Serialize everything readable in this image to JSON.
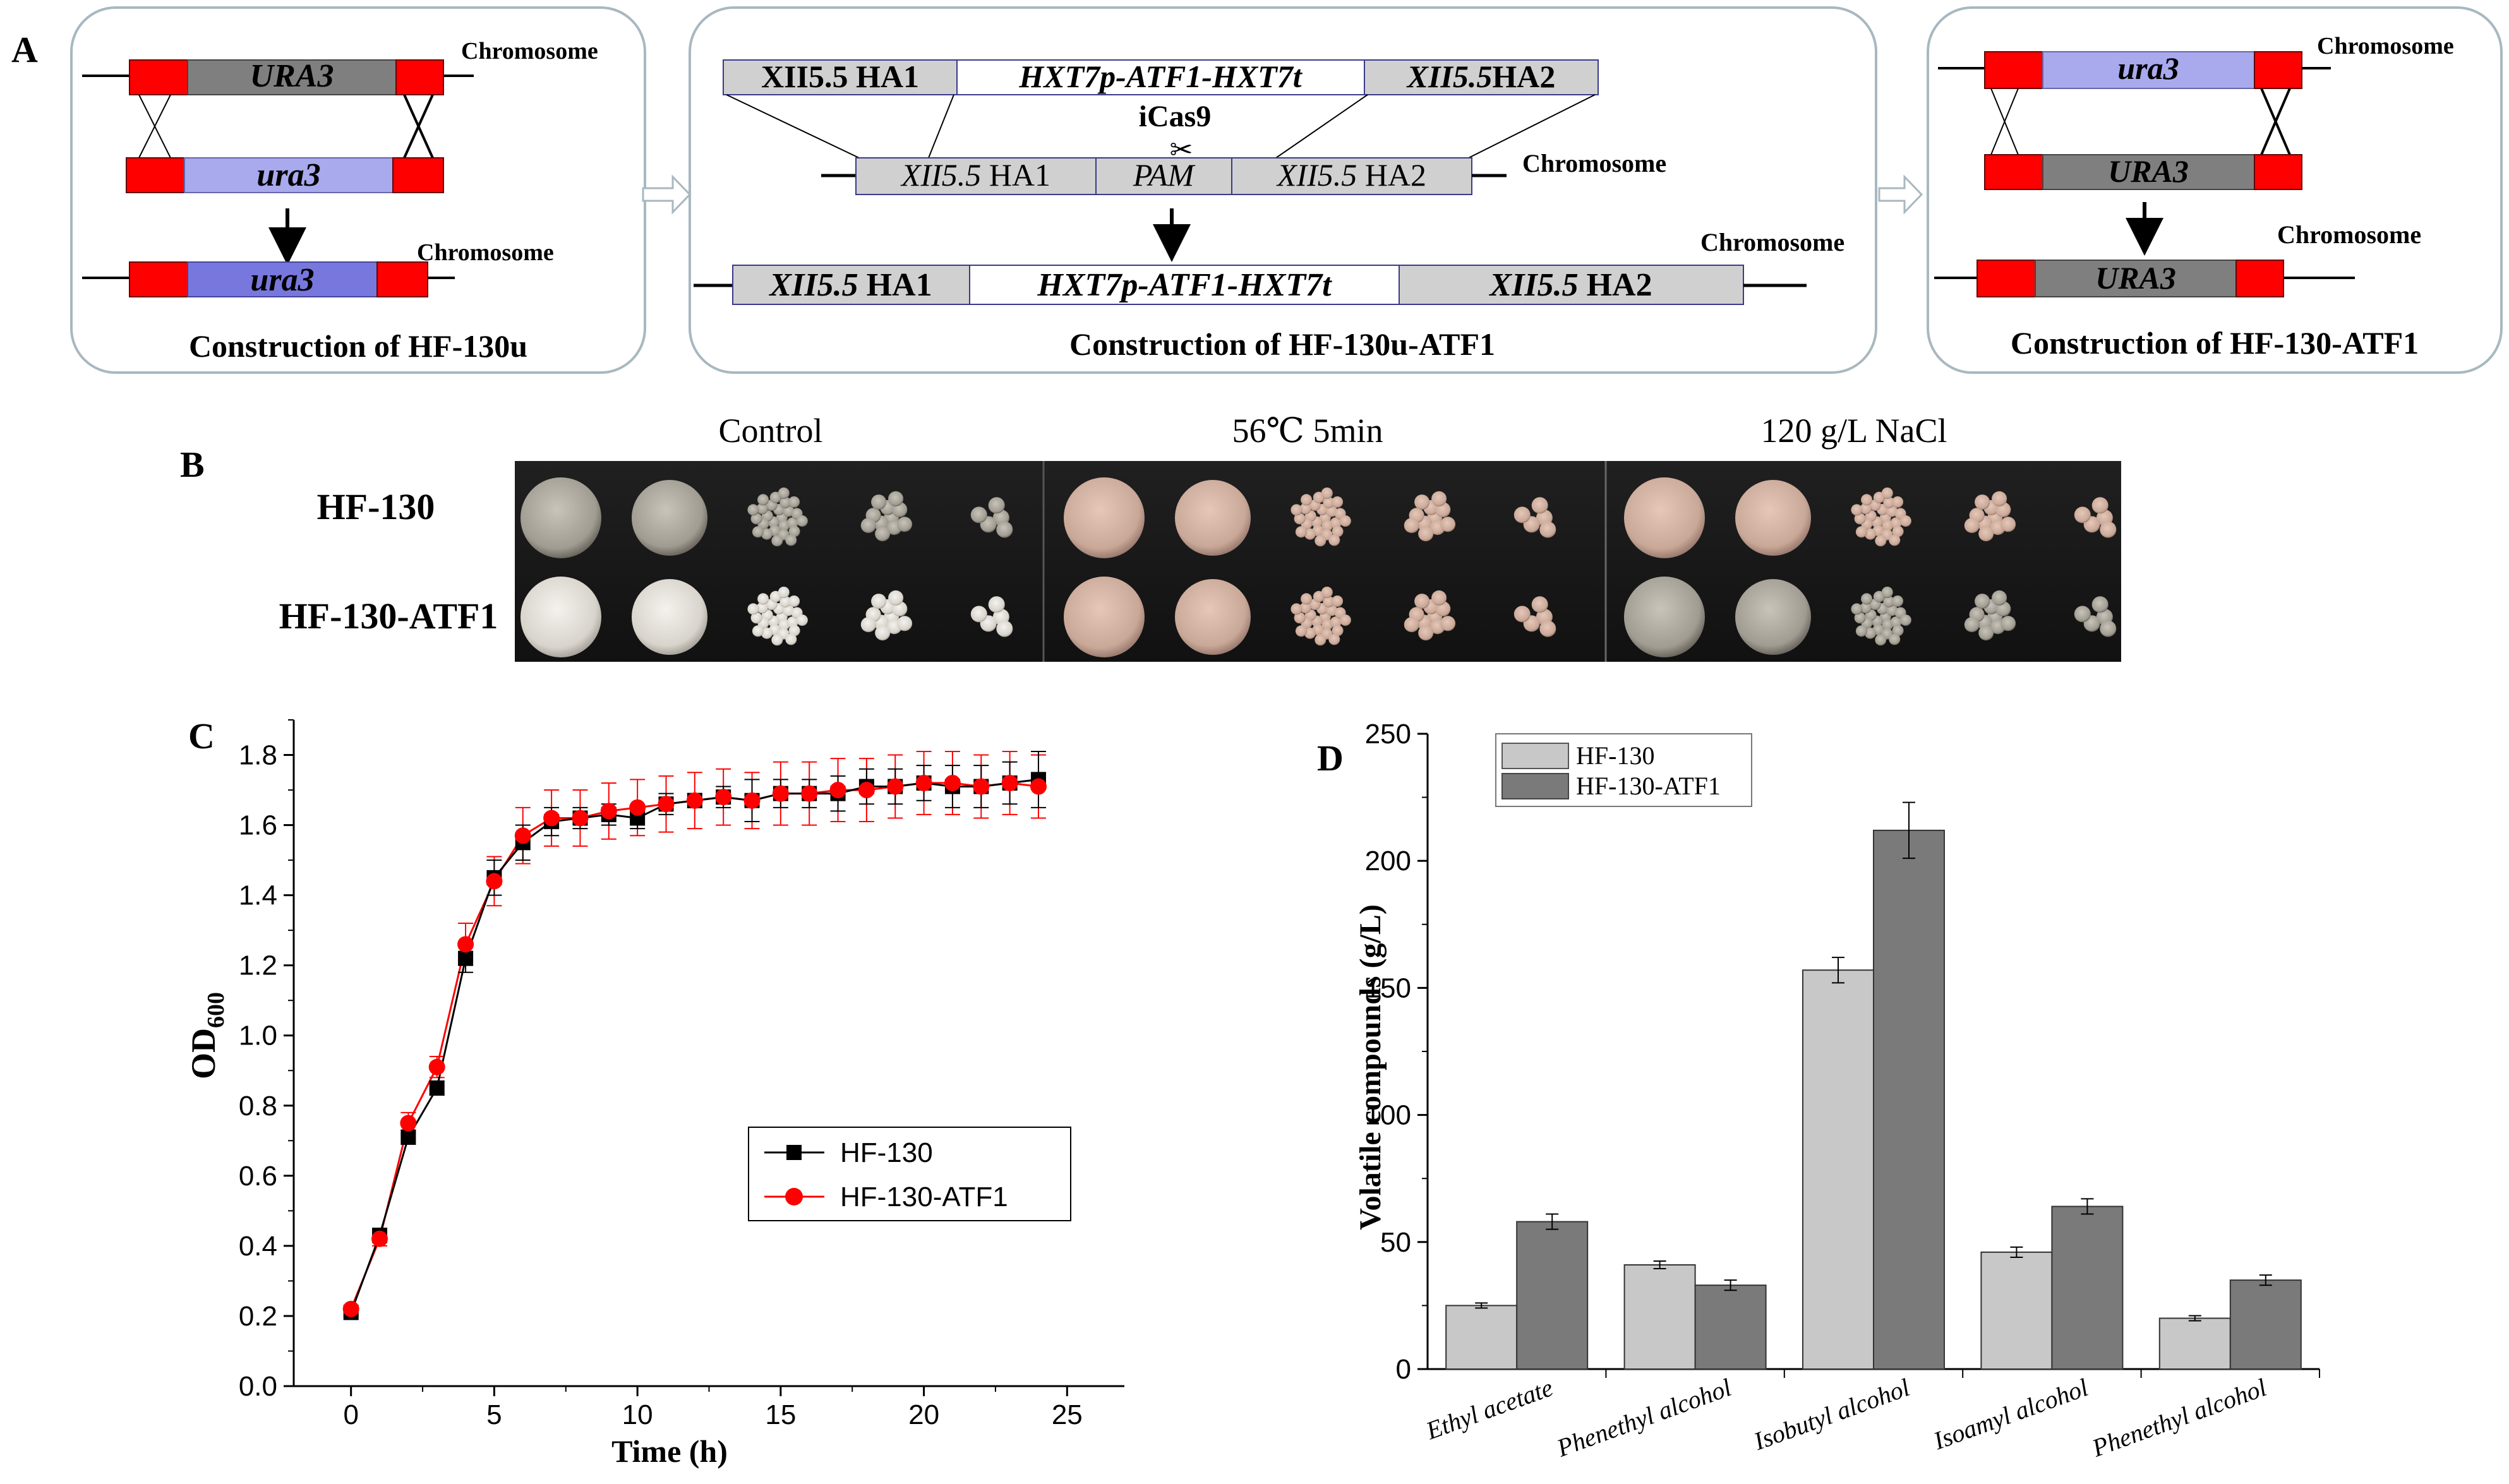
{
  "panel_labels": {
    "a": "A",
    "b": "B",
    "c": "C",
    "d": "D"
  },
  "panel_a": {
    "chromosome_label": "Chromosome",
    "step1": {
      "top_gene": "URA3",
      "mid_gene": "ura3",
      "result_gene": "ura3",
      "caption": "Construction of HF-130u"
    },
    "step2": {
      "donor_left": "XII5.5 HA1",
      "donor_mid": "HXT7p-ATF1-HXT7t",
      "donor_right_italic": "XII5.5",
      "donor_right_plain": "HA2",
      "cas_label": "iCas9",
      "scissors": "✂",
      "target_left_italic": "XII5.5",
      "target_left_plain": " HA1",
      "target_mid": "PAM",
      "target_right_italic": "XII5.5",
      "target_right_plain": "  HA2",
      "result_left_italic": "XII5.5",
      "result_left_plain": " HA1",
      "result_mid": "HXT7p-ATF1-HXT7t",
      "result_right_italic": "XII5.5",
      "result_right_plain": " HA2",
      "caption": "Construction of HF-130u-ATF1"
    },
    "step3": {
      "top_gene": "ura3",
      "mid_gene": "URA3",
      "result_gene": "URA3",
      "caption": "Construction of HF-130-ATF1"
    }
  },
  "panel_b": {
    "conditions": [
      "Control",
      "56℃ 5min",
      "120 g/L NaCl"
    ],
    "strains": [
      "HF-130",
      "HF-130-ATF1"
    ]
  },
  "colors": {
    "red_box": "#ff0000",
    "dark_gene": "#7f7f7f",
    "light_gene": "#a9a9ee",
    "mid_gene": "#7777dd",
    "grey_box": "#d0d0d0",
    "series_black": "#000000",
    "series_red": "#ff0000",
    "bar_light": "#c8c8c8",
    "bar_dark": "#7a7a7a"
  },
  "chart_data": [
    {
      "type": "line",
      "panel": "C",
      "xlabel": "Time (h)",
      "ylabel_main": "OD",
      "ylabel_sub": "600",
      "xlim": [
        -2,
        27
      ],
      "ylim": [
        0,
        1.9
      ],
      "xticks": [
        0,
        5,
        10,
        15,
        20,
        25
      ],
      "yticks": [
        0.0,
        0.2,
        0.4,
        0.6,
        0.8,
        1.0,
        1.2,
        1.4,
        1.6,
        1.8
      ],
      "legend_position": "center-right",
      "x": [
        0,
        1,
        2,
        3,
        4,
        5,
        6,
        7,
        8,
        9,
        10,
        11,
        12,
        13,
        14,
        15,
        16,
        17,
        18,
        19,
        20,
        21,
        22,
        23,
        24
      ],
      "series": [
        {
          "name": "HF-130",
          "color": "#000000",
          "marker": "square",
          "values": [
            0.21,
            0.43,
            0.71,
            0.85,
            1.22,
            1.45,
            1.55,
            1.61,
            1.62,
            1.63,
            1.62,
            1.66,
            1.67,
            1.68,
            1.67,
            1.69,
            1.69,
            1.69,
            1.71,
            1.71,
            1.72,
            1.71,
            1.71,
            1.72,
            1.73
          ],
          "errors": [
            0.01,
            0.02,
            0.02,
            0.02,
            0.04,
            0.05,
            0.05,
            0.04,
            0.03,
            0.03,
            0.03,
            0.03,
            0.02,
            0.03,
            0.06,
            0.04,
            0.04,
            0.05,
            0.05,
            0.05,
            0.05,
            0.06,
            0.06,
            0.06,
            0.08
          ]
        },
        {
          "name": "HF-130-ATF1",
          "color": "#ff0000",
          "marker": "circle",
          "values": [
            0.22,
            0.42,
            0.75,
            0.91,
            1.26,
            1.44,
            1.57,
            1.62,
            1.62,
            1.64,
            1.65,
            1.66,
            1.67,
            1.68,
            1.67,
            1.69,
            1.69,
            1.7,
            1.7,
            1.71,
            1.72,
            1.72,
            1.71,
            1.72,
            1.71
          ],
          "errors": [
            0.01,
            0.02,
            0.03,
            0.03,
            0.06,
            0.07,
            0.08,
            0.08,
            0.08,
            0.08,
            0.08,
            0.08,
            0.08,
            0.08,
            0.08,
            0.09,
            0.09,
            0.09,
            0.09,
            0.09,
            0.09,
            0.09,
            0.09,
            0.09,
            0.09
          ]
        }
      ]
    },
    {
      "type": "bar",
      "panel": "D",
      "xlabel": "",
      "ylabel": "Volatile compounds (g/L)",
      "ylim": [
        0,
        250
      ],
      "yticks": [
        0,
        50,
        100,
        150,
        200,
        250
      ],
      "legend_position": "top-left",
      "categories": [
        "Ethyl acetate",
        "Phenethyl alcohol",
        "Isobutyl alcohol",
        "Isoamyl alcohol",
        "Phenethyl alcohol"
      ],
      "series": [
        {
          "name": "HF-130",
          "color": "#c8c8c8",
          "values": [
            25,
            41,
            157,
            46,
            20
          ],
          "errors": [
            1,
            1.5,
            5,
            2,
            1
          ]
        },
        {
          "name": "HF-130-ATF1",
          "color": "#7a7a7a",
          "values": [
            58,
            33,
            212,
            64,
            35
          ],
          "errors": [
            3,
            2,
            11,
            3,
            2
          ]
        }
      ]
    }
  ]
}
